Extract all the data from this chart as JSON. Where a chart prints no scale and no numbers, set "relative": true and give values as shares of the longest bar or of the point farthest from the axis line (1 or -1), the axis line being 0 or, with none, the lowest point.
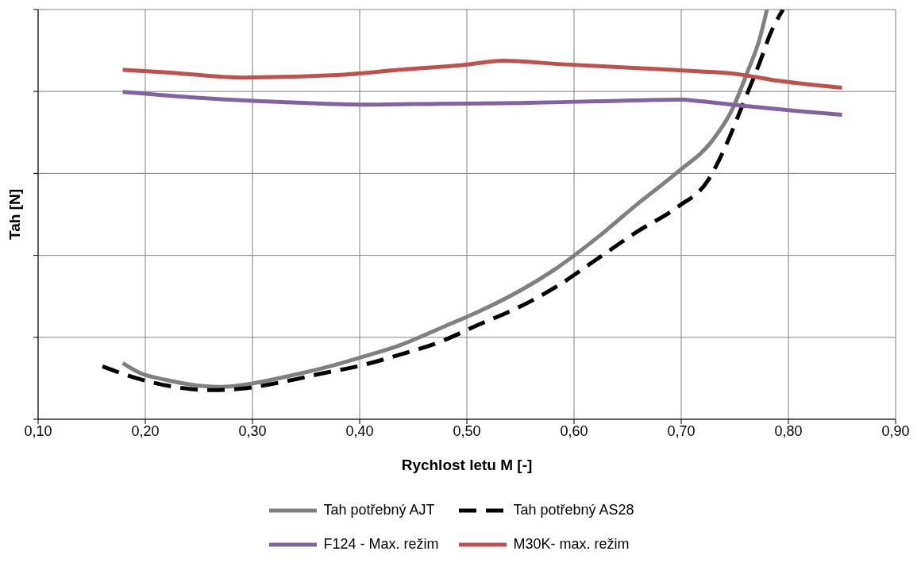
{
  "chart_data": {
    "type": "line",
    "relative": true,
    "xlabel": "Rychlost letu M [-]",
    "ylabel": "Tah [N]",
    "xlim": [
      0.1,
      0.9
    ],
    "xticks": [
      {
        "value": 0.1,
        "label": "0,10"
      },
      {
        "value": 0.2,
        "label": "0,20"
      },
      {
        "value": 0.3,
        "label": "0,30"
      },
      {
        "value": 0.4,
        "label": "0,40"
      },
      {
        "value": 0.5,
        "label": "0,50"
      },
      {
        "value": 0.6,
        "label": "0,60"
      },
      {
        "value": 0.7,
        "label": "0,70"
      },
      {
        "value": 0.8,
        "label": "0,80"
      },
      {
        "value": 0.9,
        "label": "0,90"
      }
    ],
    "grid": true,
    "legend": "bottom",
    "series": [
      {
        "name": "Tah potřebný AJT",
        "color": "#808080",
        "line_style": "solid",
        "x": [
          0.179,
          0.196,
          0.218,
          0.247,
          0.271,
          0.299,
          0.335,
          0.372,
          0.401,
          0.438,
          0.475,
          0.512,
          0.549,
          0.585,
          0.622,
          0.659,
          0.696,
          0.729,
          0.747,
          0.762,
          0.773,
          0.78
        ],
        "values": [
          0.137,
          0.112,
          0.097,
          0.083,
          0.079,
          0.087,
          0.106,
          0.129,
          0.151,
          0.181,
          0.222,
          0.264,
          0.313,
          0.371,
          0.444,
          0.525,
          0.602,
          0.68,
          0.753,
          0.849,
          0.927,
          1.0
        ]
      },
      {
        "name": "Tah potřebný AS28",
        "color": "#000000",
        "line_style": "dashed",
        "x": [
          0.16,
          0.196,
          0.232,
          0.262,
          0.291,
          0.328,
          0.365,
          0.401,
          0.438,
          0.475,
          0.512,
          0.549,
          0.585,
          0.622,
          0.659,
          0.696,
          0.725,
          0.743,
          0.758,
          0.773,
          0.784,
          0.795
        ],
        "values": [
          0.129,
          0.097,
          0.077,
          0.071,
          0.075,
          0.091,
          0.112,
          0.131,
          0.158,
          0.189,
          0.232,
          0.274,
          0.326,
          0.392,
          0.458,
          0.517,
          0.583,
          0.676,
          0.772,
          0.869,
          0.946,
          1.0
        ]
      },
      {
        "name": "F124 - Max. režim",
        "color": "#8064a2",
        "line_style": "solid",
        "x": [
          0.179,
          0.254,
          0.328,
          0.401,
          0.475,
          0.549,
          0.622,
          0.7,
          0.718,
          0.762,
          0.806,
          0.85
        ],
        "values": [
          0.799,
          0.784,
          0.774,
          0.768,
          0.77,
          0.772,
          0.776,
          0.78,
          0.776,
          0.764,
          0.753,
          0.743
        ]
      },
      {
        "name": "M30K- max. režim",
        "color": "#c0504d",
        "line_style": "solid",
        "x": [
          0.179,
          0.218,
          0.291,
          0.379,
          0.438,
          0.497,
          0.534,
          0.585,
          0.659,
          0.718,
          0.747,
          0.791,
          0.85
        ],
        "values": [
          0.853,
          0.847,
          0.834,
          0.84,
          0.853,
          0.865,
          0.875,
          0.867,
          0.857,
          0.849,
          0.844,
          0.826,
          0.809
        ]
      }
    ]
  }
}
